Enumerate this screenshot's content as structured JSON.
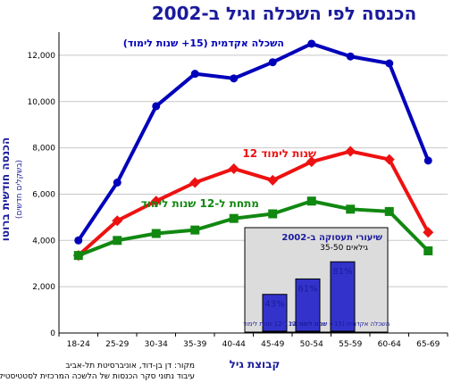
{
  "chart_data": {
    "type": "line",
    "title": "הכנסה לפי השכלה וגיל ב-2002",
    "ylabel": "הכנסה חודשית ברוטו",
    "ylabel_sub": "(בשקלים חדשים)",
    "xlabel": "קבוצת גיל",
    "ylim": [
      0,
      13000
    ],
    "yticks": [
      "0",
      "2,000",
      "4,000",
      "6,000",
      "8,000",
      "10,000",
      "12,000"
    ],
    "yticks_values": [
      0,
      2000,
      4000,
      6000,
      8000,
      10000,
      12000
    ],
    "categories": [
      "18-24",
      "25-29",
      "30-34",
      "35-39",
      "40-44",
      "45-49",
      "50-54",
      "55-59",
      "60-64",
      "65-69"
    ],
    "grid": true,
    "series": [
      {
        "name": "השכלה אקדמית (15+ שנות לימוד)",
        "color": "#0000bb",
        "marker": "circle",
        "values": [
          4000,
          6500,
          9800,
          11200,
          11000,
          11700,
          12500,
          11950,
          11650,
          7450
        ]
      },
      {
        "name": "12 שנות לימוד",
        "color": "#ee1111",
        "marker": "diamond",
        "values": [
          3350,
          4850,
          5700,
          6500,
          7100,
          6600,
          7400,
          7850,
          7500,
          4350
        ]
      },
      {
        "name": "מתחת ל-12 שנות לימוד",
        "color": "#118811",
        "marker": "square",
        "values": [
          3350,
          4000,
          4300,
          4450,
          4950,
          5150,
          5700,
          5350,
          5250,
          3550
        ]
      }
    ],
    "inset": {
      "type": "bar",
      "title": "שיעורי תעסוקה ב-2002",
      "subtitle": "גילאים 35-50",
      "categories": [
        "מתחת ל-12 שנות לימוד",
        "12 שנות לימוד",
        "השכלה אקדמית (15+ שנות לימוד)"
      ],
      "values": [
        43,
        61,
        81
      ],
      "value_labels": [
        "43%",
        "61%",
        "81%"
      ],
      "ylim": [
        0,
        100
      ],
      "bar_color": "#3333cc"
    },
    "source": "מקור: דן בן-דוד, אוניברסיטת תל-אביב",
    "source_note": "עיבוד נתוני סקר הכנסות של הלשכה המרכזית לסטטיסטיקה"
  }
}
